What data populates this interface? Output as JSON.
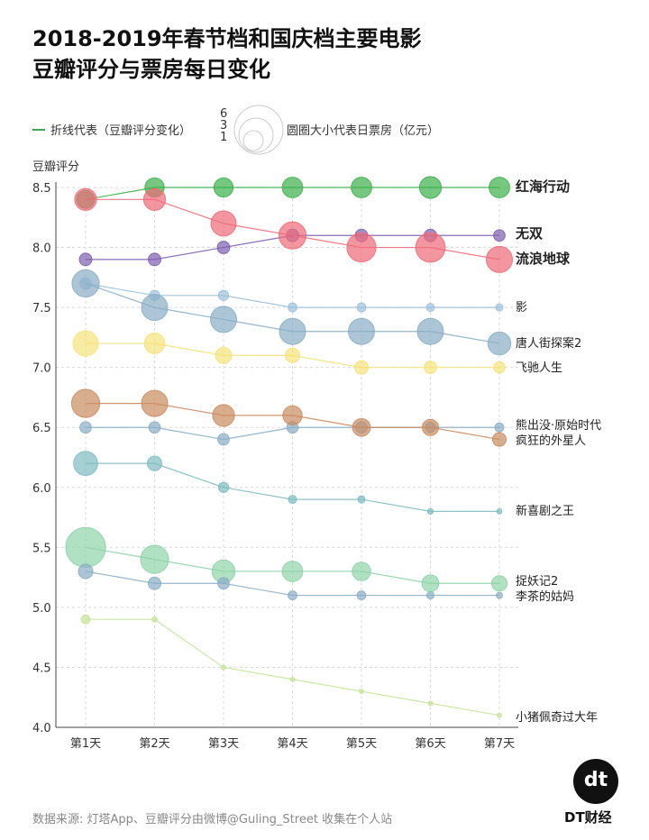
{
  "title_line1": "2018-2019年春节档和国庆档主要电影",
  "title_line2": "豆瓣评分与票房每日变化",
  "legend": {
    "line_label": "折线代表（豆瓣评分变化）",
    "size_values": [
      "6",
      "3",
      "1"
    ],
    "size_label": "圆圈大小代表日票房（亿元）"
  },
  "source": "数据来源: 灯塔App、豆瓣评分由微博@Guling_Street 收集在个人站",
  "brand": {
    "logo": "dt",
    "name": "DT财经"
  },
  "chart_data": {
    "type": "line",
    "ylabel": "豆瓣评分",
    "ylim": [
      4.0,
      8.5
    ],
    "yticks": [
      "8.5",
      "8.0",
      "7.5",
      "7.0",
      "6.5",
      "6.0",
      "5.5",
      "5.0",
      "4.5",
      "4.0"
    ],
    "categories": [
      "第1天",
      "第2天",
      "第3天",
      "第4天",
      "第5天",
      "第6天",
      "第7天"
    ],
    "grid": true,
    "series": [
      {
        "name": "红海行动",
        "color": "#3cb04a",
        "bold": true,
        "values": [
          8.4,
          8.5,
          8.5,
          8.5,
          8.5,
          8.5,
          8.5
        ],
        "box_office": [
          1.2,
          1.4,
          1.4,
          1.6,
          1.6,
          1.8,
          1.6
        ]
      },
      {
        "name": "无双",
        "color": "#7d5fb0",
        "bold": true,
        "values": [
          7.9,
          7.9,
          8.0,
          8.1,
          8.1,
          8.1,
          8.1
        ],
        "box_office": [
          0.6,
          0.6,
          0.6,
          0.6,
          0.6,
          0.6,
          0.5
        ]
      },
      {
        "name": "流浪地球",
        "color": "#f06a78",
        "bold": true,
        "values": [
          8.4,
          8.4,
          8.2,
          8.1,
          8.0,
          8.0,
          7.9
        ],
        "box_office": [
          1.8,
          1.8,
          2.4,
          2.8,
          3.2,
          3.3,
          2.6
        ]
      },
      {
        "name": "影",
        "color": "#9cc0dc",
        "bold": false,
        "values": [
          7.7,
          7.6,
          7.6,
          7.5,
          7.5,
          7.5,
          7.5
        ],
        "box_office": [
          0.5,
          0.4,
          0.4,
          0.3,
          0.3,
          0.25,
          0.2
        ]
      },
      {
        "name": "唐人街探案2",
        "color": "#8aaec6",
        "bold": false,
        "values": [
          7.7,
          7.5,
          7.4,
          7.3,
          7.3,
          7.3,
          7.2
        ],
        "box_office": [
          2.8,
          2.6,
          2.6,
          2.6,
          2.6,
          2.6,
          2.0
        ]
      },
      {
        "name": "飞驰人生",
        "color": "#f5e27a",
        "bold": false,
        "values": [
          7.2,
          7.2,
          7.1,
          7.1,
          7.0,
          7.0,
          7.0
        ],
        "box_office": [
          2.4,
          1.6,
          1.0,
          0.8,
          0.7,
          0.6,
          0.5
        ]
      },
      {
        "name": "熊出没·原始时代",
        "color": "#8aaec6",
        "bold": false,
        "values": [
          6.5,
          6.5,
          6.4,
          6.5,
          6.5,
          6.5,
          6.5
        ],
        "box_office": [
          0.5,
          0.5,
          0.5,
          0.5,
          0.5,
          0.4,
          0.3
        ]
      },
      {
        "name": "疯狂的外星人",
        "color": "#c98b60",
        "bold": false,
        "values": [
          6.7,
          6.7,
          6.6,
          6.6,
          6.5,
          6.5,
          6.4
        ],
        "box_office": [
          3.0,
          2.6,
          1.8,
          1.4,
          1.2,
          1.0,
          0.7
        ]
      },
      {
        "name": "新喜剧之王",
        "color": "#7fbcc0",
        "bold": false,
        "values": [
          6.2,
          6.2,
          6.0,
          5.9,
          5.9,
          5.8,
          5.8
        ],
        "box_office": [
          2.2,
          0.8,
          0.4,
          0.25,
          0.2,
          0.12,
          0.1
        ]
      },
      {
        "name": "捉妖记2",
        "color": "#8ed4a8",
        "bold": false,
        "values": [
          5.5,
          5.4,
          5.3,
          5.3,
          5.3,
          5.2,
          5.2
        ],
        "box_office": [
          6.0,
          3.0,
          2.0,
          1.6,
          1.3,
          1.1,
          0.9
        ]
      },
      {
        "name": "李茶的姑妈",
        "color": "#8aaec6",
        "bold": false,
        "values": [
          5.3,
          5.2,
          5.2,
          5.1,
          5.1,
          5.1,
          5.1
        ],
        "box_office": [
          0.8,
          0.6,
          0.5,
          0.3,
          0.3,
          0.2,
          0.15
        ]
      },
      {
        "name": "小猪佩奇过大年",
        "color": "#c5e49a",
        "bold": false,
        "values": [
          4.9,
          4.9,
          4.5,
          4.4,
          4.3,
          4.2,
          4.1
        ],
        "box_office": [
          0.3,
          0.1,
          0.05,
          0.03,
          0.02,
          0.02,
          0.01
        ]
      }
    ]
  }
}
